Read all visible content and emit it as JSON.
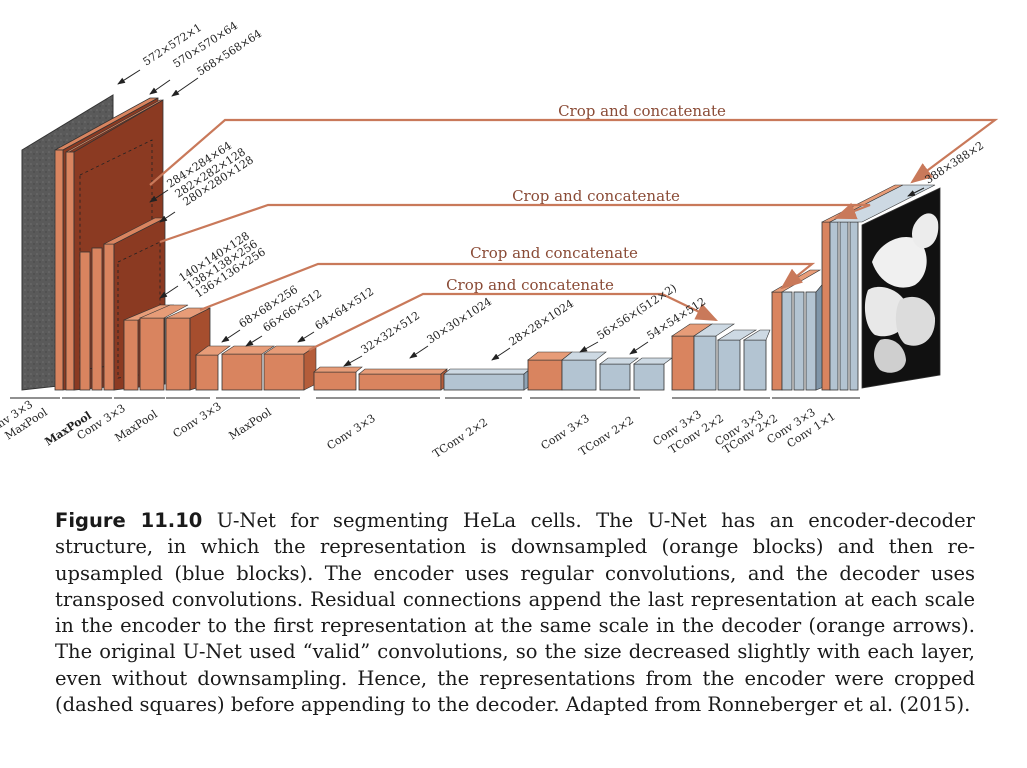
{
  "diagram": {
    "size_labels": [
      "572×572×1",
      "570×570×64",
      "568×568×64",
      "284×284×64",
      "282×282×128",
      "280×280×128",
      "140×140×128",
      "138×138×256",
      "136×136×256",
      "68×68×256",
      "66×66×512",
      "64×64×512",
      "32×32×512",
      "30×30×1024",
      "28×28×1024",
      "56×56×(512×2)",
      "54×54×512",
      "388×388×2"
    ],
    "op_labels": [
      "nv 3×3",
      "MaxPool",
      "MaxPool",
      "Conv 3×3",
      "MaxPool",
      "Conv 3×3",
      "MaxPool",
      "Conv 3×3",
      "TConv 2×2",
      "Conv 3×3",
      "TConv 2×2",
      "Conv 3×3",
      "TConv 2×2",
      "Conv 3×3",
      "TConv 2×2",
      "Conv 3×3",
      "Conv 1×1"
    ],
    "crop_labels": [
      "Crop and concatenate",
      "Crop and concatenate",
      "Crop and concatenate",
      "Crop and concatenate"
    ],
    "colors": {
      "encoder": "#d9845f",
      "encoder_dark": "#8b3a22",
      "decoder": "#b3c4d2",
      "arrow": "#c9795a"
    }
  },
  "caption": {
    "figure_label": "Figure 11.10",
    "text": " U-Net for segmenting HeLa cells. The U-Net has an encoder-decoder structure, in which the representation is downsampled (orange blocks) and then re-upsampled (blue blocks). The encoder uses regular convolutions, and the decoder uses transposed convolutions. Residual connections append the last representation at each scale in the encoder to the first representation at the same scale in the decoder (orange arrows). The original U-Net used “valid” convolutions, so the size decreased slightly with each layer, even without downsampling. Hence, the representations from the encoder were cropped (dashed squares) before appending to the decoder. Adapted from Ronneberger et al. (2015)."
  }
}
